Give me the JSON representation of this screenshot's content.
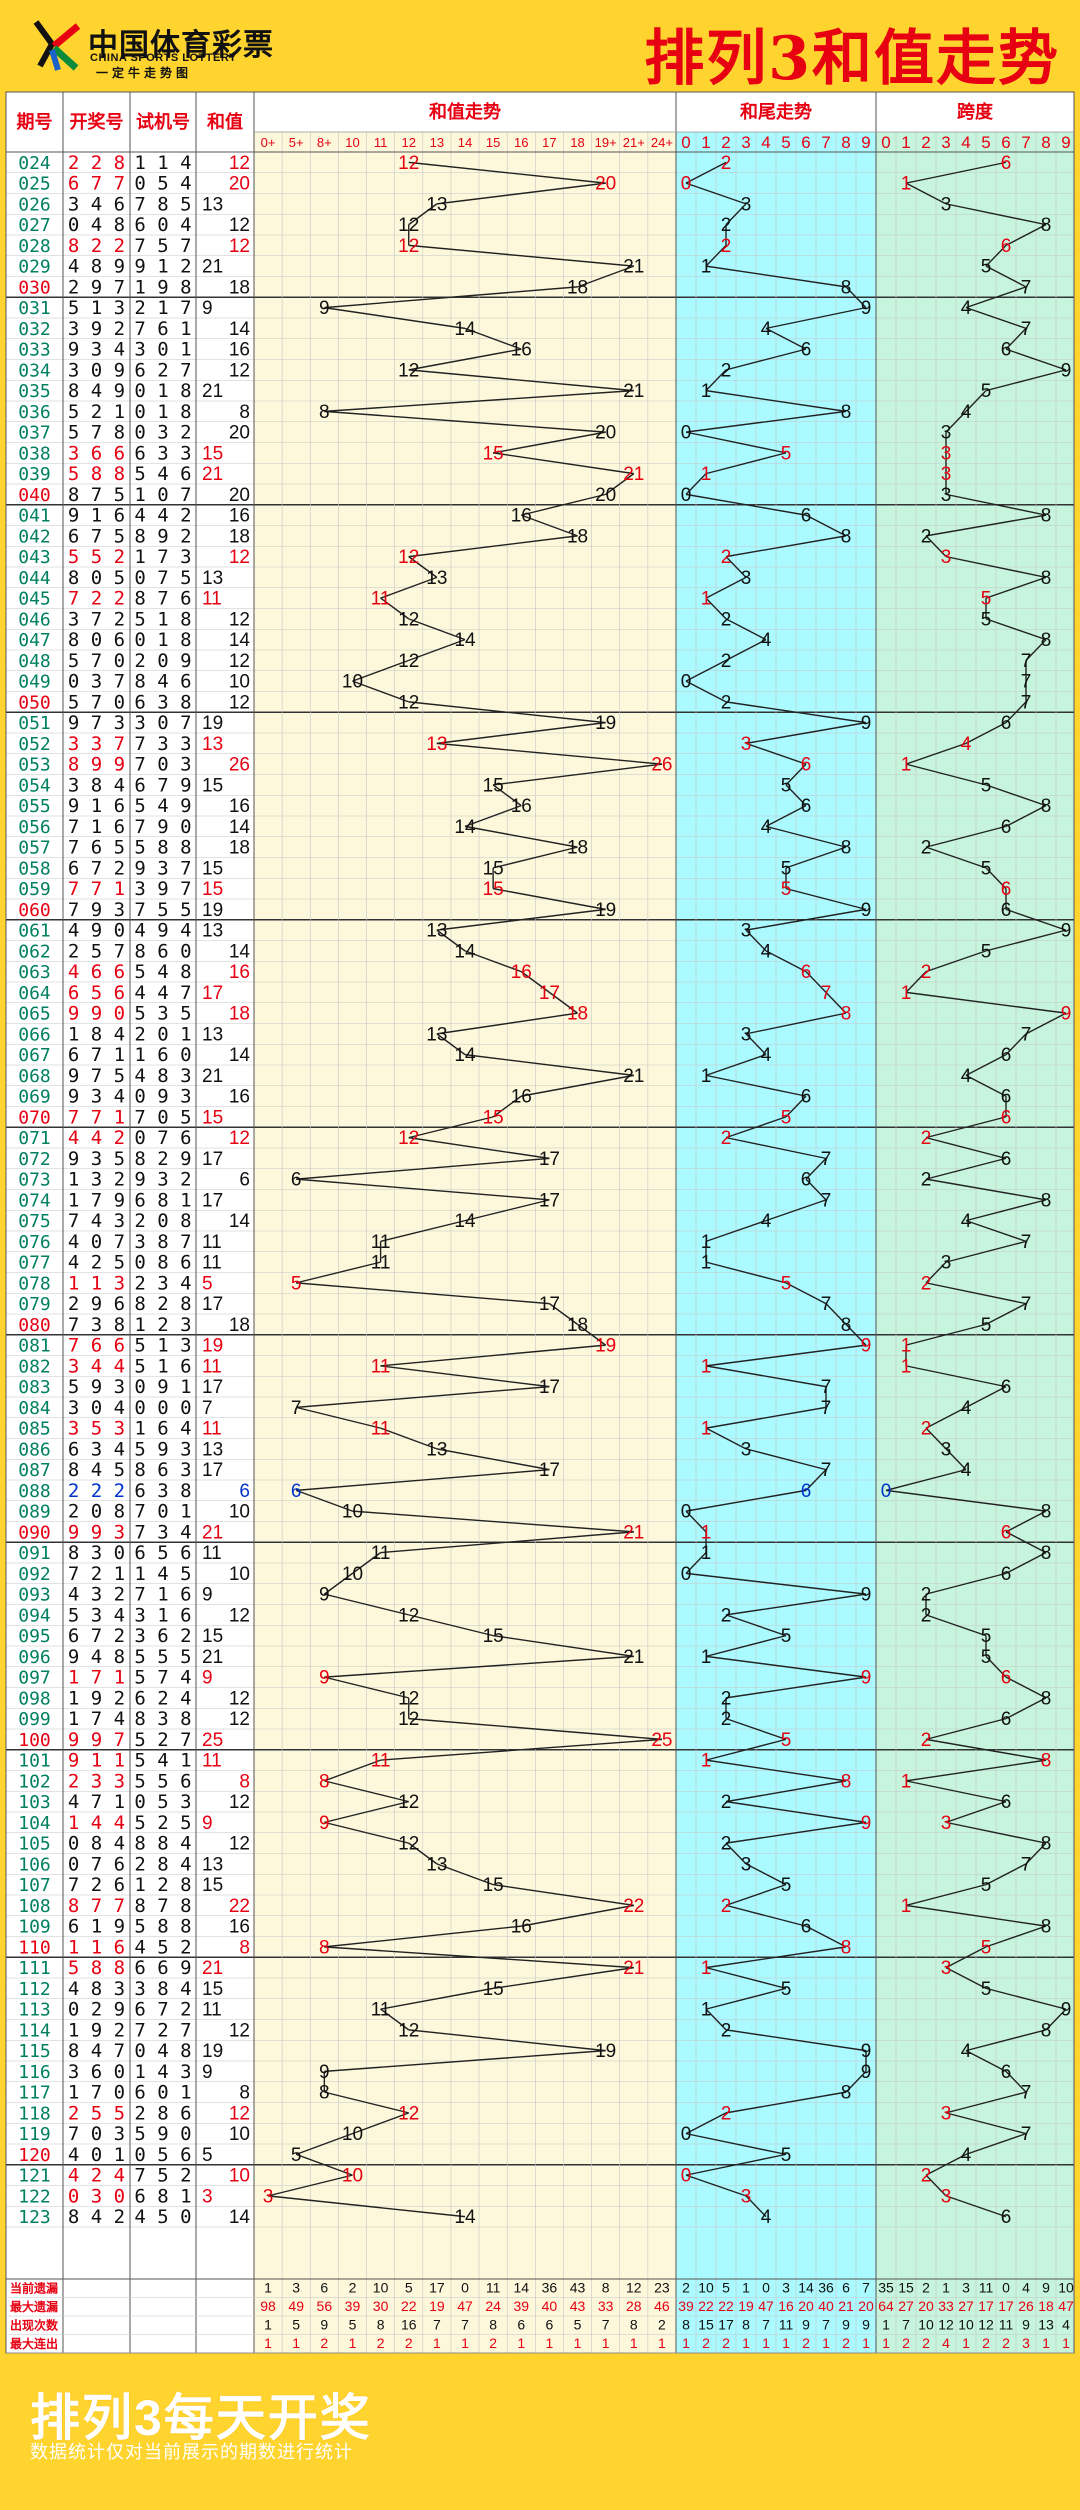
{
  "header": {
    "logo_cn": "中国体育彩票",
    "logo_en": "CHINA SPORTS LOTTERY",
    "logo_slogan": "一定牛走势图",
    "title": "排列3和值走势"
  },
  "footer": {
    "title": "排列3每天开奖",
    "note": "数据统计仅对当前展示的期数进行统计"
  },
  "colors": {
    "accent": "#e60012",
    "blue": "#0033cc",
    "period": "#008060",
    "zone_sum": "#fdf8dc",
    "zone_tail": "#aafaff",
    "zone_span": "#c6f4dc",
    "grid": "#c6c6c6"
  },
  "chart_data": {
    "type": "table",
    "columns": {
      "period": "期号",
      "draw": "开奖号",
      "test": "试机号",
      "sum": "和值",
      "sum_trend": "和值走势",
      "tail_trend": "和尾走势",
      "span": "跨度"
    },
    "sum_headers": [
      "0+",
      "5+",
      "8+",
      "10",
      "11",
      "12",
      "13",
      "14",
      "15",
      "16",
      "17",
      "18",
      "19+",
      "21+",
      "24+"
    ],
    "digit_headers": [
      "0",
      "1",
      "2",
      "3",
      "4",
      "5",
      "6",
      "7",
      "8",
      "9"
    ],
    "rows": [
      {
        "p": "024",
        "d": "228",
        "t": "114",
        "s": 12
      },
      {
        "p": "025",
        "d": "677",
        "t": "054",
        "s": 20
      },
      {
        "p": "026",
        "d": "346",
        "t": "785",
        "s": 13
      },
      {
        "p": "027",
        "d": "048",
        "t": "604",
        "s": 12
      },
      {
        "p": "028",
        "d": "822",
        "t": "757",
        "s": 12
      },
      {
        "p": "029",
        "d": "489",
        "t": "912",
        "s": 21
      },
      {
        "p": "030",
        "d": "297",
        "t": "198",
        "s": 18
      },
      {
        "p": "031",
        "d": "513",
        "t": "217",
        "s": 9
      },
      {
        "p": "032",
        "d": "392",
        "t": "761",
        "s": 14
      },
      {
        "p": "033",
        "d": "934",
        "t": "301",
        "s": 16
      },
      {
        "p": "034",
        "d": "309",
        "t": "627",
        "s": 12
      },
      {
        "p": "035",
        "d": "849",
        "t": "018",
        "s": 21
      },
      {
        "p": "036",
        "d": "521",
        "t": "018",
        "s": 8
      },
      {
        "p": "037",
        "d": "578",
        "t": "032",
        "s": 20
      },
      {
        "p": "038",
        "d": "366",
        "t": "633",
        "s": 15
      },
      {
        "p": "039",
        "d": "588",
        "t": "546",
        "s": 21
      },
      {
        "p": "040",
        "d": "875",
        "t": "107",
        "s": 20
      },
      {
        "p": "041",
        "d": "916",
        "t": "442",
        "s": 16
      },
      {
        "p": "042",
        "d": "675",
        "t": "892",
        "s": 18
      },
      {
        "p": "043",
        "d": "552",
        "t": "173",
        "s": 12
      },
      {
        "p": "044",
        "d": "805",
        "t": "075",
        "s": 13
      },
      {
        "p": "045",
        "d": "722",
        "t": "876",
        "s": 11
      },
      {
        "p": "046",
        "d": "372",
        "t": "518",
        "s": 12
      },
      {
        "p": "047",
        "d": "806",
        "t": "018",
        "s": 14
      },
      {
        "p": "048",
        "d": "570",
        "t": "209",
        "s": 12
      },
      {
        "p": "049",
        "d": "037",
        "t": "846",
        "s": 10
      },
      {
        "p": "050",
        "d": "570",
        "t": "638",
        "s": 12
      },
      {
        "p": "051",
        "d": "973",
        "t": "307",
        "s": 19
      },
      {
        "p": "052",
        "d": "337",
        "t": "733",
        "s": 13
      },
      {
        "p": "053",
        "d": "899",
        "t": "703",
        "s": 26
      },
      {
        "p": "054",
        "d": "384",
        "t": "679",
        "s": 15
      },
      {
        "p": "055",
        "d": "916",
        "t": "549",
        "s": 16
      },
      {
        "p": "056",
        "d": "716",
        "t": "790",
        "s": 14
      },
      {
        "p": "057",
        "d": "765",
        "t": "588",
        "s": 18
      },
      {
        "p": "058",
        "d": "672",
        "t": "937",
        "s": 15
      },
      {
        "p": "059",
        "d": "771",
        "t": "397",
        "s": 15
      },
      {
        "p": "060",
        "d": "793",
        "t": "755",
        "s": 19
      },
      {
        "p": "061",
        "d": "490",
        "t": "494",
        "s": 13
      },
      {
        "p": "062",
        "d": "257",
        "t": "860",
        "s": 14
      },
      {
        "p": "063",
        "d": "466",
        "t": "548",
        "s": 16
      },
      {
        "p": "064",
        "d": "656",
        "t": "447",
        "s": 17
      },
      {
        "p": "065",
        "d": "990",
        "t": "535",
        "s": 18
      },
      {
        "p": "066",
        "d": "184",
        "t": "201",
        "s": 13
      },
      {
        "p": "067",
        "d": "671",
        "t": "160",
        "s": 14
      },
      {
        "p": "068",
        "d": "975",
        "t": "483",
        "s": 21
      },
      {
        "p": "069",
        "d": "934",
        "t": "093",
        "s": 16
      },
      {
        "p": "070",
        "d": "771",
        "t": "705",
        "s": 15
      },
      {
        "p": "071",
        "d": "442",
        "t": "076",
        "s": 12
      },
      {
        "p": "072",
        "d": "935",
        "t": "829",
        "s": 17
      },
      {
        "p": "073",
        "d": "132",
        "t": "932",
        "s": 6
      },
      {
        "p": "074",
        "d": "179",
        "t": "681",
        "s": 17
      },
      {
        "p": "075",
        "d": "743",
        "t": "208",
        "s": 14
      },
      {
        "p": "076",
        "d": "407",
        "t": "387",
        "s": 11
      },
      {
        "p": "077",
        "d": "425",
        "t": "086",
        "s": 11
      },
      {
        "p": "078",
        "d": "113",
        "t": "234",
        "s": 5
      },
      {
        "p": "079",
        "d": "296",
        "t": "828",
        "s": 17
      },
      {
        "p": "080",
        "d": "738",
        "t": "123",
        "s": 18
      },
      {
        "p": "081",
        "d": "766",
        "t": "513",
        "s": 19
      },
      {
        "p": "082",
        "d": "344",
        "t": "516",
        "s": 11
      },
      {
        "p": "083",
        "d": "593",
        "t": "091",
        "s": 17
      },
      {
        "p": "084",
        "d": "304",
        "t": "000",
        "s": 7
      },
      {
        "p": "085",
        "d": "353",
        "t": "164",
        "s": 11
      },
      {
        "p": "086",
        "d": "634",
        "t": "593",
        "s": 13
      },
      {
        "p": "087",
        "d": "845",
        "t": "863",
        "s": 17
      },
      {
        "p": "088",
        "d": "222",
        "t": "638",
        "s": 6
      },
      {
        "p": "089",
        "d": "208",
        "t": "701",
        "s": 10
      },
      {
        "p": "090",
        "d": "993",
        "t": "734",
        "s": 21
      },
      {
        "p": "091",
        "d": "830",
        "t": "656",
        "s": 11
      },
      {
        "p": "092",
        "d": "721",
        "t": "145",
        "s": 10
      },
      {
        "p": "093",
        "d": "432",
        "t": "716",
        "s": 9
      },
      {
        "p": "094",
        "d": "534",
        "t": "316",
        "s": 12
      },
      {
        "p": "095",
        "d": "672",
        "t": "362",
        "s": 15
      },
      {
        "p": "096",
        "d": "948",
        "t": "555",
        "s": 21
      },
      {
        "p": "097",
        "d": "171",
        "t": "574",
        "s": 9
      },
      {
        "p": "098",
        "d": "192",
        "t": "624",
        "s": 12
      },
      {
        "p": "099",
        "d": "174",
        "t": "838",
        "s": 12
      },
      {
        "p": "100",
        "d": "997",
        "t": "527",
        "s": 25
      },
      {
        "p": "101",
        "d": "911",
        "t": "541",
        "s": 11
      },
      {
        "p": "102",
        "d": "233",
        "t": "556",
        "s": 8
      },
      {
        "p": "103",
        "d": "471",
        "t": "053",
        "s": 12
      },
      {
        "p": "104",
        "d": "144",
        "t": "525",
        "s": 9
      },
      {
        "p": "105",
        "d": "084",
        "t": "884",
        "s": 12
      },
      {
        "p": "106",
        "d": "076",
        "t": "284",
        "s": 13
      },
      {
        "p": "107",
        "d": "726",
        "t": "128",
        "s": 15
      },
      {
        "p": "108",
        "d": "877",
        "t": "878",
        "s": 22
      },
      {
        "p": "109",
        "d": "619",
        "t": "588",
        "s": 16
      },
      {
        "p": "110",
        "d": "116",
        "t": "452",
        "s": 8
      },
      {
        "p": "111",
        "d": "588",
        "t": "669",
        "s": 21
      },
      {
        "p": "112",
        "d": "483",
        "t": "384",
        "s": 15
      },
      {
        "p": "113",
        "d": "029",
        "t": "672",
        "s": 11
      },
      {
        "p": "114",
        "d": "192",
        "t": "727",
        "s": 12
      },
      {
        "p": "115",
        "d": "847",
        "t": "048",
        "s": 19
      },
      {
        "p": "116",
        "d": "360",
        "t": "143",
        "s": 9
      },
      {
        "p": "117",
        "d": "170",
        "t": "601",
        "s": 8
      },
      {
        "p": "118",
        "d": "255",
        "t": "286",
        "s": 12
      },
      {
        "p": "119",
        "d": "703",
        "t": "590",
        "s": 10
      },
      {
        "p": "120",
        "d": "401",
        "t": "056",
        "s": 5
      },
      {
        "p": "121",
        "d": "424",
        "t": "752",
        "s": 10
      },
      {
        "p": "122",
        "d": "030",
        "t": "681",
        "s": 3
      },
      {
        "p": "123",
        "d": "842",
        "t": "450",
        "s": 14
      }
    ],
    "stats": [
      {
        "label": "当前遗漏",
        "sum": [
          1,
          3,
          6,
          2,
          10,
          5,
          17,
          0,
          11,
          14,
          36,
          43,
          8,
          12,
          23
        ],
        "tail": [
          2,
          10,
          5,
          1,
          0,
          3,
          14,
          36,
          6,
          7
        ],
        "span": [
          35,
          15,
          2,
          1,
          3,
          11,
          0,
          4,
          9,
          10
        ]
      },
      {
        "label": "最大遗漏",
        "sum": [
          98,
          49,
          56,
          39,
          30,
          22,
          19,
          47,
          24,
          39,
          40,
          43,
          33,
          28,
          46
        ],
        "tail": [
          39,
          22,
          22,
          19,
          47,
          16,
          20,
          40,
          21,
          20
        ],
        "span": [
          64,
          27,
          20,
          33,
          27,
          17,
          17,
          26,
          18,
          47
        ]
      },
      {
        "label": "出现次数",
        "sum": [
          1,
          5,
          9,
          5,
          8,
          16,
          7,
          7,
          8,
          6,
          6,
          5,
          7,
          8,
          2
        ],
        "tail": [
          8,
          15,
          17,
          8,
          7,
          11,
          9,
          7,
          9,
          9
        ],
        "span": [
          1,
          7,
          10,
          12,
          10,
          12,
          11,
          9,
          13,
          4
        ]
      },
      {
        "label": "最大连出",
        "sum": [
          1,
          1,
          2,
          1,
          2,
          2,
          1,
          1,
          2,
          1,
          1,
          1,
          1,
          1,
          1
        ],
        "tail": [
          1,
          2,
          2,
          1,
          1,
          1,
          2,
          1,
          2,
          1
        ],
        "span": [
          1,
          2,
          2,
          4,
          1,
          2,
          2,
          3,
          1,
          1
        ]
      }
    ]
  }
}
